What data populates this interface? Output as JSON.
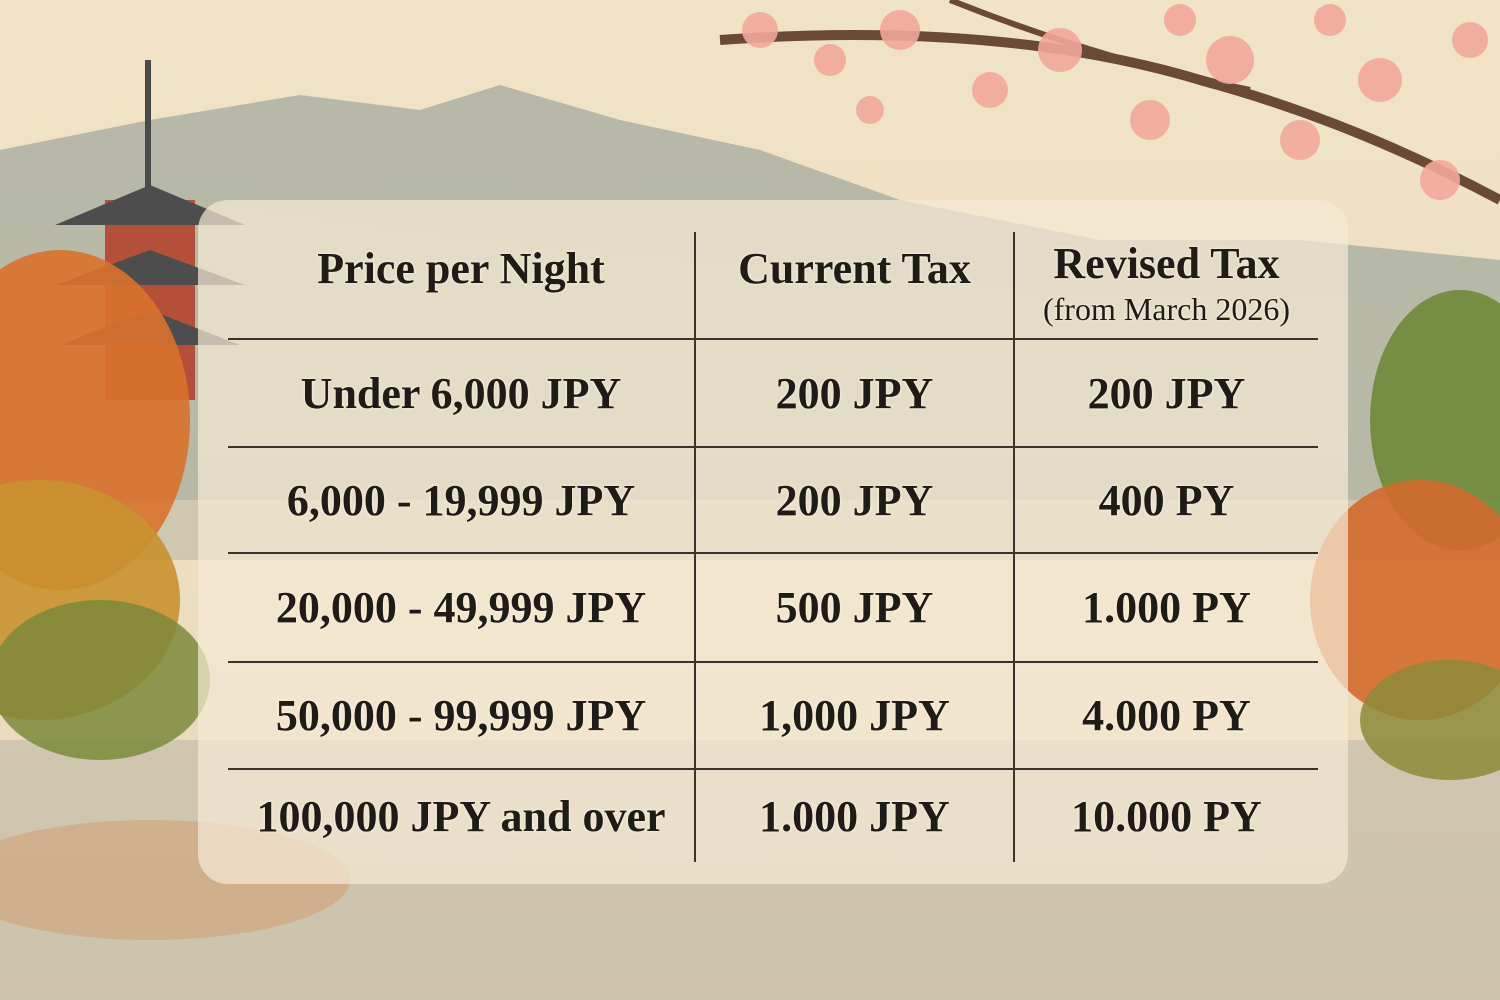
{
  "table": {
    "headers": [
      {
        "label": "Price per Night"
      },
      {
        "label": "Current Tax"
      },
      {
        "label": "Revised Tax",
        "sublabel": "(from March 2026)"
      }
    ],
    "rows": [
      [
        "Under 6,000 JPY",
        "200 JPY",
        "200 JPY"
      ],
      [
        "6,000 - 19,999 JPY",
        "200 JPY",
        "400 PY"
      ],
      [
        "20,000 - 49,999 JPY",
        "500 JPY",
        "1.000 PY"
      ],
      [
        "50,000 - 99,999 JPY",
        "1,000 JPY",
        "4.000 PY"
      ],
      [
        "100,000 JPY and over",
        "1.000 JPY",
        "10.000 PY"
      ]
    ]
  },
  "colors": {
    "text": "#1f1b17",
    "panel": "#f4e9d4",
    "blossom": "#f2a89a",
    "foliage": "#d9722c"
  }
}
